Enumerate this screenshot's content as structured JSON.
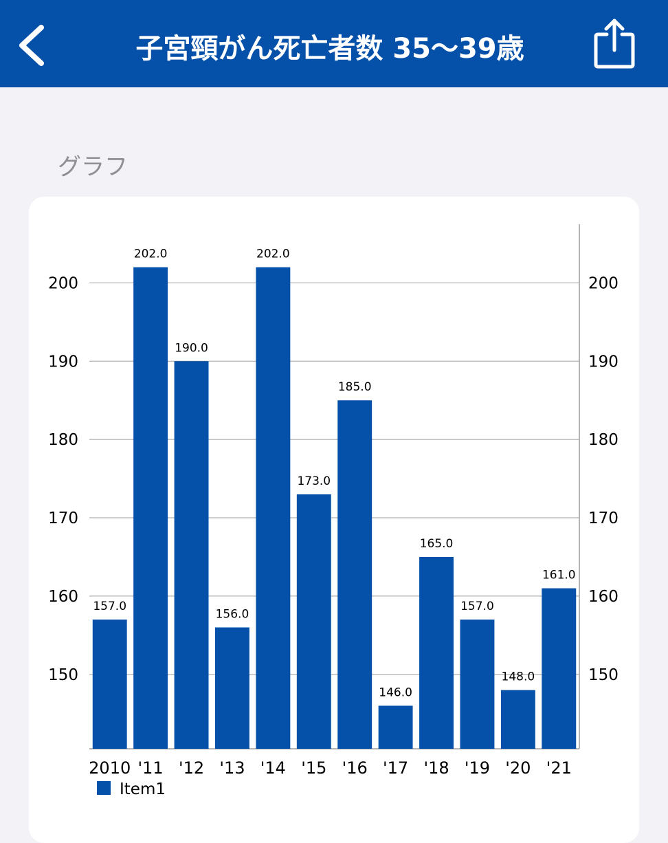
{
  "nav": {
    "title": "子宮頸がん死亡者数 35～39歳",
    "back_icon": "chevron-left-icon",
    "share_icon": "share-icon"
  },
  "section": {
    "header": "グラフ"
  },
  "colors": {
    "nav_bg": "#0550A8",
    "bar": "#0550A8",
    "page_bg": "#F2F2F7",
    "card_bg": "#FFFFFF",
    "grid": "#9E9E9E",
    "section_header": "#8E8E93"
  },
  "chart_data": {
    "type": "bar",
    "categories": [
      "2010",
      "'11",
      "'12",
      "'13",
      "'14",
      "'15",
      "'16",
      "'17",
      "'18",
      "'19",
      "'20",
      "'21"
    ],
    "series": [
      {
        "name": "Item1",
        "values": [
          157.0,
          202.0,
          190.0,
          156.0,
          202.0,
          173.0,
          185.0,
          146.0,
          165.0,
          157.0,
          148.0,
          161.0
        ]
      }
    ],
    "data_labels": [
      "157.0",
      "202.0",
      "190.0",
      "156.0",
      "202.0",
      "173.0",
      "185.0",
      "146.0",
      "165.0",
      "157.0",
      "148.0",
      "161.0"
    ],
    "y_ticks": [
      150,
      160,
      170,
      180,
      190,
      200
    ],
    "y_tick_labels": [
      "150",
      "160",
      "170",
      "180",
      "190",
      "200"
    ],
    "ylim": [
      140.5,
      207.5
    ],
    "dual_y_axis": true,
    "grid": true,
    "legend_position": "bottom-left",
    "title": "",
    "xlabel": "",
    "ylabel": ""
  }
}
